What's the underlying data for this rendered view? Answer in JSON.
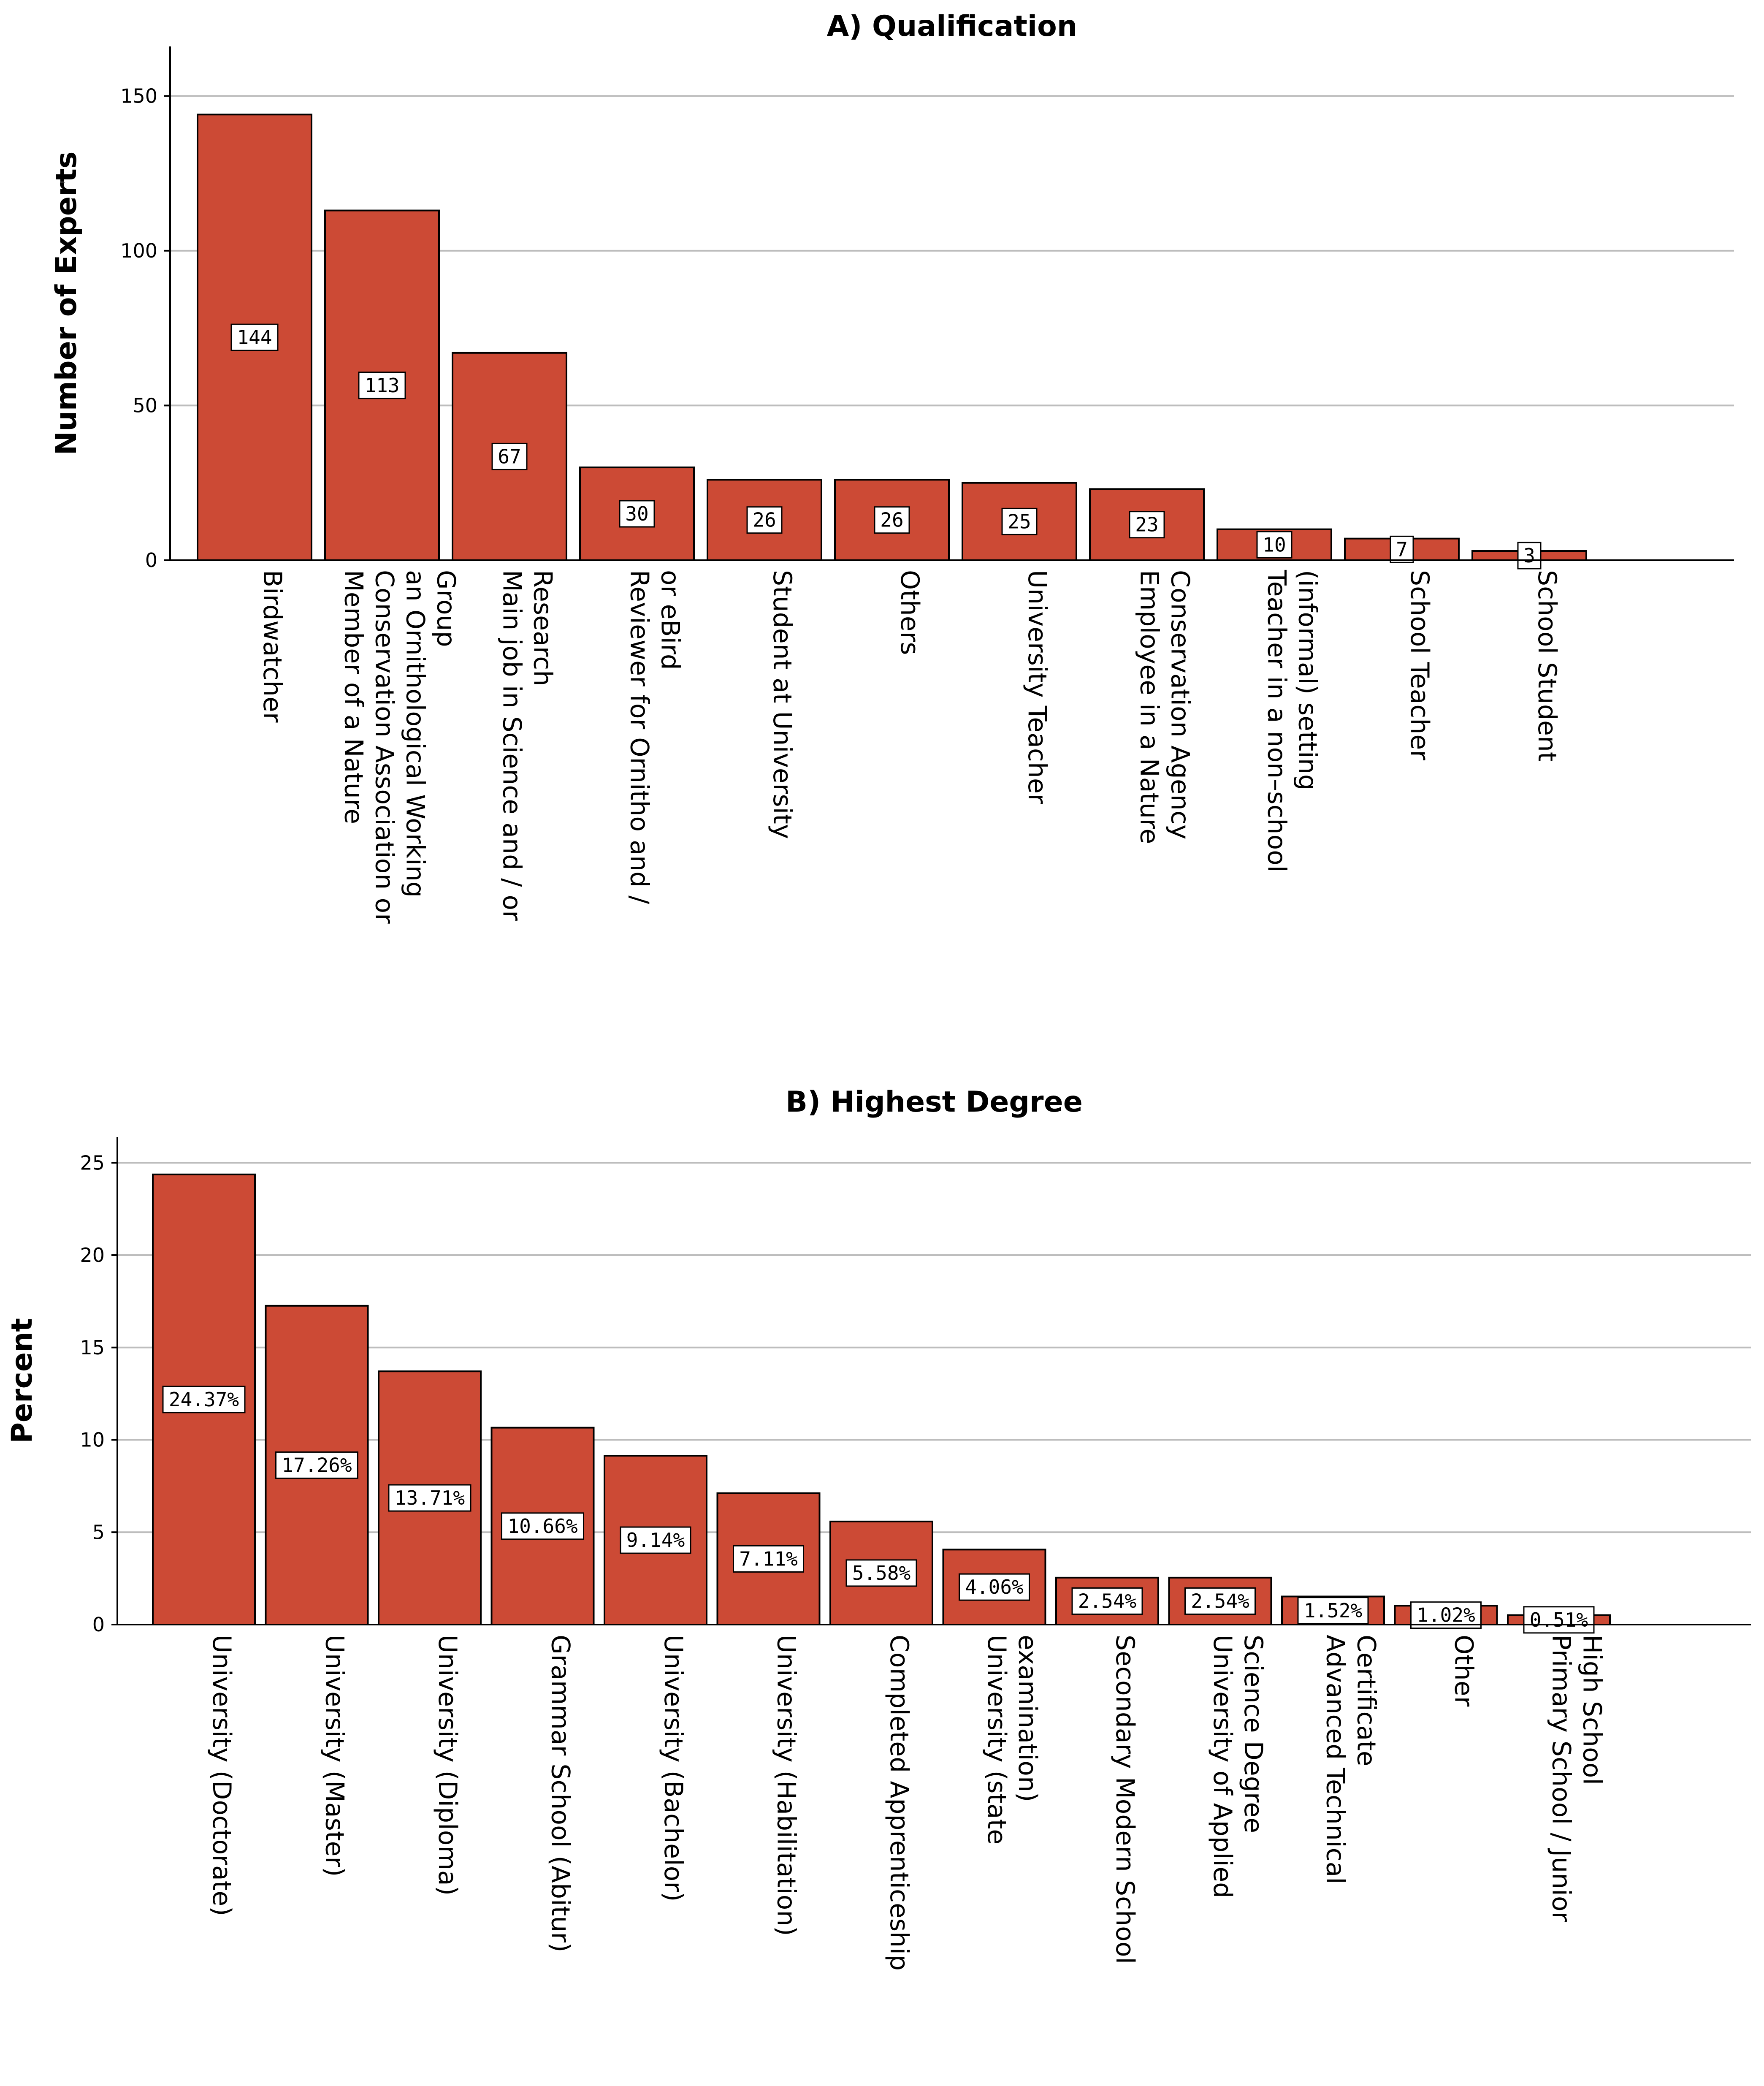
{
  "chart_data": [
    {
      "type": "bar",
      "title": "A) Qualification",
      "xlabel": "",
      "ylabel": "Number of Experts",
      "ylim": [
        0,
        166
      ],
      "yticks": [
        0,
        50,
        100,
        150
      ],
      "grid": true,
      "bar_color": "#CC4A35",
      "categories": [
        "Birdwatcher",
        "Member of a Nature Conservation Association or an Ornithological Working Group",
        "Main job in Science and / or Research",
        "Reviewer for Ornitho and / or eBird",
        "Student at University",
        "Others",
        "University Teacher",
        "Employee in a Nature Conservation Agency",
        "Teacher in a non–school (informal) setting",
        "School Teacher",
        "School Student"
      ],
      "category_lines": [
        [
          "Birdwatcher"
        ],
        [
          "Member of a Nature",
          "Conservation Association or",
          "an Ornithological Working",
          "Group"
        ],
        [
          "Main job in Science and / or",
          "Research"
        ],
        [
          "Reviewer for Ornitho and /",
          "or eBird"
        ],
        [
          "Student at University"
        ],
        [
          "Others"
        ],
        [
          "University Teacher"
        ],
        [
          "Employee in a Nature",
          "Conservation Agency"
        ],
        [
          "Teacher in a non–school",
          "(informal) setting"
        ],
        [
          "School Teacher"
        ],
        [
          "School Student"
        ]
      ],
      "values": [
        144,
        113,
        67,
        30,
        26,
        26,
        25,
        23,
        10,
        7,
        3
      ],
      "data_labels": [
        "144",
        "113",
        "67",
        "30",
        "26",
        "26",
        "25",
        "23",
        "10",
        "7",
        "3"
      ]
    },
    {
      "type": "bar",
      "title": "B) Highest Degree",
      "xlabel": "",
      "ylabel": "Percent",
      "ylim": [
        0,
        26.4
      ],
      "yticks": [
        0,
        5,
        10,
        15,
        20,
        25
      ],
      "grid": true,
      "bar_color": "#CC4A35",
      "categories": [
        "University (Doctorate)",
        "University (Master)",
        "University (Diploma)",
        "Grammar School (Abitur)",
        "University (Bachelor)",
        "University (Habilitation)",
        "Completed Apprenticeship",
        "University (state examination)",
        "Secondary Modern School",
        "University of Applied Science Degree",
        "Advanced Technical Certificate",
        "Other",
        "Primary School / Junior High School"
      ],
      "category_lines": [
        [
          "University (Doctorate)"
        ],
        [
          "University (Master)"
        ],
        [
          "University (Diploma)"
        ],
        [
          "Grammar School (Abitur)"
        ],
        [
          "University (Bachelor)"
        ],
        [
          "University (Habilitation)"
        ],
        [
          "Completed Apprenticeship"
        ],
        [
          "University (state",
          "examination)"
        ],
        [
          "Secondary Modern School"
        ],
        [
          "University of Applied",
          "Science Degree"
        ],
        [
          "Advanced Technical",
          "Certificate"
        ],
        [
          "Other"
        ],
        [
          "Primary School / Junior",
          "High School"
        ]
      ],
      "values": [
        24.37,
        17.26,
        13.71,
        10.66,
        9.14,
        7.11,
        5.58,
        4.06,
        2.54,
        2.54,
        1.52,
        1.02,
        0.51
      ],
      "data_labels": [
        "24.37%",
        "17.26%",
        "13.71%",
        "10.66%",
        "9.14%",
        "7.11%",
        "5.58%",
        "4.06%",
        "2.54%",
        "2.54%",
        "1.52%",
        "1.02%",
        "0.51%"
      ]
    }
  ]
}
